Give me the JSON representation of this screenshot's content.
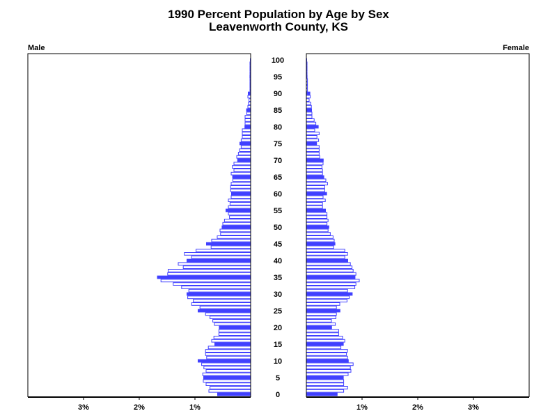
{
  "chart_data": {
    "type": "bar",
    "orientation": "horizontal-pyramid",
    "title": "1990 Percent Population by Age by Sex",
    "subtitle": "Leavenworth County, KS",
    "color": "#4040ff",
    "age_tick_labels": [
      "0",
      "5",
      "10",
      "15",
      "20",
      "25",
      "30",
      "35",
      "40",
      "45",
      "50",
      "55",
      "60",
      "65",
      "70",
      "75",
      "80",
      "85",
      "90",
      "95",
      "100"
    ],
    "xlim_percent": [
      0,
      4
    ],
    "male": {
      "label": "Male",
      "tick_labels": [
        "3%",
        "2%",
        "1%"
      ],
      "values": [
        0.6,
        0.75,
        0.73,
        0.8,
        0.85,
        0.85,
        0.86,
        0.8,
        0.84,
        0.88,
        0.95,
        0.79,
        0.81,
        0.81,
        0.76,
        0.65,
        0.7,
        0.66,
        0.57,
        0.57,
        0.57,
        0.65,
        0.68,
        0.73,
        0.81,
        0.95,
        0.91,
        1.06,
        1.03,
        1.13,
        1.15,
        1.11,
        1.24,
        1.39,
        1.61,
        1.68,
        1.49,
        1.48,
        1.21,
        1.3,
        1.15,
        1.06,
        1.19,
        0.98,
        0.71,
        0.8,
        0.7,
        0.6,
        0.54,
        0.55,
        0.52,
        0.5,
        0.47,
        0.38,
        0.4,
        0.45,
        0.4,
        0.37,
        0.4,
        0.35,
        0.35,
        0.36,
        0.36,
        0.35,
        0.32,
        0.33,
        0.35,
        0.3,
        0.33,
        0.3,
        0.24,
        0.25,
        0.22,
        0.2,
        0.17,
        0.2,
        0.17,
        0.15,
        0.15,
        0.15,
        0.11,
        0.1,
        0.1,
        0.1,
        0.07,
        0.08,
        0.05,
        0.04,
        0.03,
        0.05,
        0.05,
        0.01,
        0.01,
        0.01,
        0.01,
        0.02,
        0.005,
        0.005,
        0.005,
        0.005,
        0.005
      ]
    },
    "female": {
      "label": "Female",
      "tick_labels": [
        "1%",
        "2%",
        "3%"
      ],
      "values": [
        0.56,
        0.67,
        0.74,
        0.67,
        0.67,
        0.67,
        0.75,
        0.8,
        0.79,
        0.84,
        0.76,
        0.74,
        0.72,
        0.74,
        0.62,
        0.67,
        0.69,
        0.65,
        0.58,
        0.58,
        0.46,
        0.52,
        0.45,
        0.53,
        0.54,
        0.61,
        0.54,
        0.6,
        0.73,
        0.77,
        0.83,
        0.74,
        0.87,
        0.89,
        0.95,
        0.88,
        0.89,
        0.84,
        0.82,
        0.79,
        0.75,
        0.69,
        0.74,
        0.69,
        0.49,
        0.52,
        0.5,
        0.48,
        0.43,
        0.39,
        0.41,
        0.37,
        0.39,
        0.37,
        0.37,
        0.35,
        0.29,
        0.29,
        0.34,
        0.3,
        0.37,
        0.33,
        0.33,
        0.38,
        0.35,
        0.32,
        0.29,
        0.29,
        0.28,
        0.3,
        0.31,
        0.24,
        0.23,
        0.23,
        0.23,
        0.19,
        0.22,
        0.19,
        0.23,
        0.15,
        0.22,
        0.17,
        0.14,
        0.1,
        0.1,
        0.1,
        0.09,
        0.08,
        0.05,
        0.07,
        0.07,
        0.02,
        0.02,
        0.02,
        0.02,
        0.02,
        0.005,
        0.005,
        0.005,
        0.005,
        0.005
      ]
    }
  }
}
